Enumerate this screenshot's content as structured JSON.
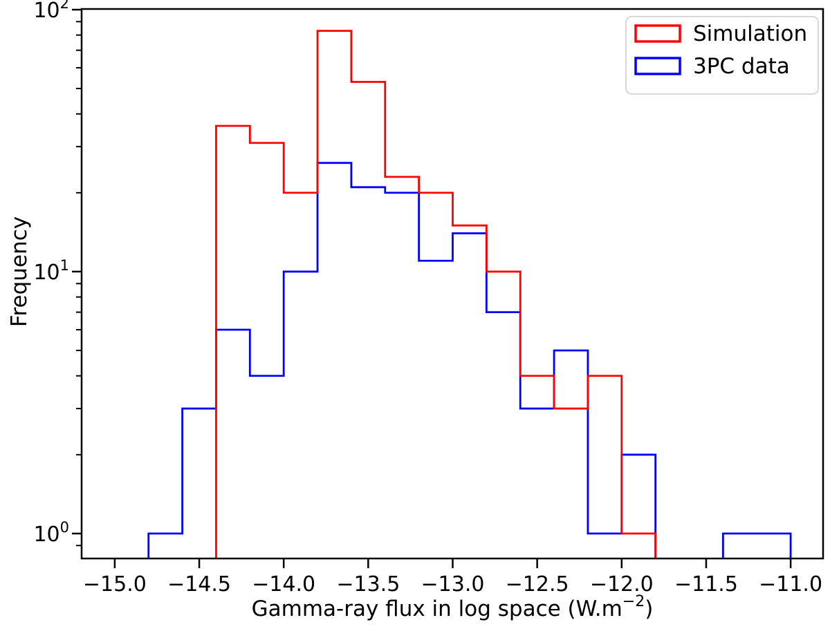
{
  "chart_data": {
    "type": "step-histogram",
    "title": "",
    "xlabel": "Gamma-ray flux in log space (W.m⁻²)",
    "xlabel_parts": {
      "pre": "Gamma-ray flux in log space (W.m",
      "sup": "−2",
      "post": ")"
    },
    "ylabel": "Frequency",
    "y_scale": "log",
    "grid": false,
    "xlim": [
      -15.196,
      -10.808
    ],
    "ylim": [
      0.803,
      100.6
    ],
    "bin_width": 0.2,
    "x_ticks": [
      {
        "v": -15.0,
        "label": "−15.0"
      },
      {
        "v": -14.5,
        "label": "−14.5"
      },
      {
        "v": -14.0,
        "label": "−14.0"
      },
      {
        "v": -13.5,
        "label": "−13.5"
      },
      {
        "v": -13.0,
        "label": "−13.0"
      },
      {
        "v": -12.5,
        "label": "−12.5"
      },
      {
        "v": -12.0,
        "label": "−12.0"
      },
      {
        "v": -11.5,
        "label": "−11.5"
      },
      {
        "v": -11.0,
        "label": "−11.0"
      }
    ],
    "y_ticks": [
      {
        "v": 1,
        "base": "10",
        "exp": "0"
      },
      {
        "v": 10,
        "base": "10",
        "exp": "1"
      },
      {
        "v": 100,
        "base": "10",
        "exp": "2"
      }
    ],
    "series": [
      {
        "name": "Simulation",
        "color": "#ff0000",
        "bin_start": -14.4,
        "counts": [
          36,
          31,
          20,
          83,
          53,
          23,
          20,
          15,
          10,
          4,
          3,
          4,
          1
        ]
      },
      {
        "name": "3PC data",
        "color": "#0000ff",
        "bin_start": -14.8,
        "counts": [
          1,
          3,
          6,
          4,
          10,
          26,
          21,
          20,
          11,
          14,
          7,
          3,
          5,
          1,
          2,
          0,
          0,
          1,
          1
        ]
      }
    ],
    "legend": {
      "position": "upper right",
      "frame_color": "#cccccc",
      "entries": [
        "Simulation",
        "3PC data"
      ]
    }
  }
}
